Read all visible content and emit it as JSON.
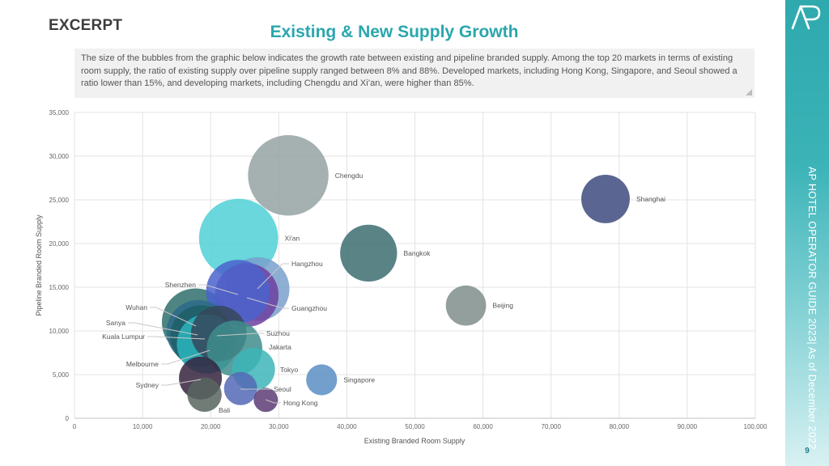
{
  "header": {
    "excerpt": "EXCERPT",
    "title": "Existing & New Supply Growth",
    "description": "The size of the bubbles from the graphic below indicates the growth rate between existing and pipeline branded supply. Among the top 20 markets in terms of existing room supply, the ratio of existing supply over pipeline supply ranged between 8% and 88%. Developed markets, including Hong Kong, Singapore, and Seoul showed a ratio lower than 15%, and developing markets, including Chengdu and Xi’an, were higher than 85%."
  },
  "sidebar": {
    "logo": "AP",
    "text": "AP HOTEL OPERATOR GUIDE 2023| As of December 2022",
    "page_number": "9",
    "accent": "#2ea9ae"
  },
  "chart_data": {
    "type": "scatter",
    "subtype": "bubble",
    "title": "Existing & New Supply Growth",
    "xlabel": "Existing Branded Room Supply",
    "ylabel": "Pipeline Branded Room Supply",
    "xlim": [
      0,
      100000
    ],
    "ylim": [
      0,
      35000
    ],
    "xticks": [
      "0",
      "10,000",
      "20,000",
      "30,000",
      "40,000",
      "50,000",
      "60,000",
      "70,000",
      "80,000",
      "90,000",
      "100,000"
    ],
    "yticks": [
      "0",
      "5,000",
      "10,000",
      "15,000",
      "20,000",
      "25,000",
      "30,000",
      "35,000"
    ],
    "grid": true,
    "legend": "none",
    "size_meaning": "growth rate (pipeline / existing), relative",
    "points": [
      {
        "name": "Chengdu",
        "x": 31400,
        "y": 27800,
        "size": 0.88,
        "color": "#95a2a2",
        "label_side": "right"
      },
      {
        "name": "Xi'an",
        "x": 24100,
        "y": 20600,
        "size": 0.85,
        "color": "#4fd0d6",
        "label_side": "right"
      },
      {
        "name": "Shanghai",
        "x": 78000,
        "y": 25100,
        "size": 0.32,
        "color": "#3d4b7e",
        "label_side": "right"
      },
      {
        "name": "Bangkok",
        "x": 43200,
        "y": 18900,
        "size": 0.44,
        "color": "#3d6d71",
        "label_side": "right"
      },
      {
        "name": "Beijing",
        "x": 57500,
        "y": 12900,
        "size": 0.22,
        "color": "#7f8e8c",
        "label_side": "right"
      },
      {
        "name": "Hangzhou",
        "x": 26900,
        "y": 14800,
        "size": 0.55,
        "color": "#7aa0cc",
        "label_side": "right"
      },
      {
        "name": "Guangzhou",
        "x": 25300,
        "y": 14100,
        "size": 0.55,
        "color": "#6f3fa0",
        "label_side": "right"
      },
      {
        "name": "Shenzhen",
        "x": 24000,
        "y": 14500,
        "size": 0.55,
        "color": "#4a63cc",
        "label_side": "left"
      },
      {
        "name": "Wuhan",
        "x": 17800,
        "y": 11000,
        "size": 0.62,
        "color": "#2f6e6c",
        "label_side": "left"
      },
      {
        "name": "Sanya",
        "x": 18200,
        "y": 9900,
        "size": 0.55,
        "color": "#2e6a8c",
        "label_side": "left"
      },
      {
        "name": "Kuala Lumpur",
        "x": 18600,
        "y": 9400,
        "size": 0.52,
        "color": "#1f5f66",
        "label_side": "left"
      },
      {
        "name": "Suzhou",
        "x": 21200,
        "y": 9700,
        "size": 0.42,
        "color": "#36475a",
        "label_side": "right"
      },
      {
        "name": "Melbourne",
        "x": 19400,
        "y": 8500,
        "size": 0.48,
        "color": "#2ab5bd",
        "label_side": "left"
      },
      {
        "name": "Jakarta",
        "x": 23500,
        "y": 8000,
        "size": 0.42,
        "color": "#3e8d8c",
        "label_side": "right"
      },
      {
        "name": "Tokyo",
        "x": 26300,
        "y": 5600,
        "size": 0.25,
        "color": "#3db5b8",
        "label_side": "right"
      },
      {
        "name": "Singapore",
        "x": 36300,
        "y": 4400,
        "size": 0.13,
        "color": "#5b8ec4",
        "label_side": "right"
      },
      {
        "name": "Seoul",
        "x": 24400,
        "y": 3400,
        "size": 0.15,
        "color": "#5468b5",
        "label_side": "right"
      },
      {
        "name": "Hong Kong",
        "x": 28100,
        "y": 2100,
        "size": 0.08,
        "color": "#5c3c75",
        "label_side": "right"
      },
      {
        "name": "Sydney",
        "x": 18500,
        "y": 4600,
        "size": 0.25,
        "color": "#35233e",
        "label_side": "left"
      },
      {
        "name": "Bali",
        "x": 19100,
        "y": 2700,
        "size": 0.16,
        "color": "#58655f",
        "label_side": "below"
      }
    ]
  }
}
